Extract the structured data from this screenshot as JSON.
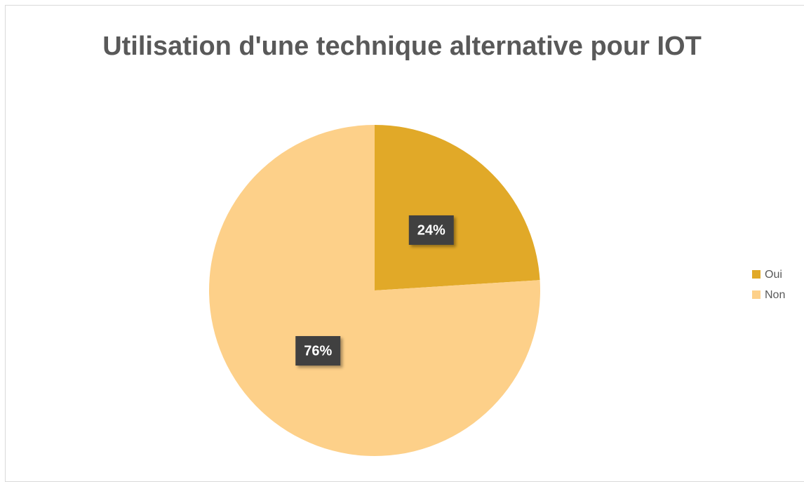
{
  "chart_data": {
    "type": "pie",
    "title": "Utilisation d'une technique alternative pour IOT",
    "categories": [
      "Oui",
      "Non"
    ],
    "values": [
      24,
      76
    ],
    "value_labels": [
      "24%",
      "76%"
    ],
    "colors": [
      "#e1a928",
      "#fdd089"
    ],
    "legend": "right"
  }
}
